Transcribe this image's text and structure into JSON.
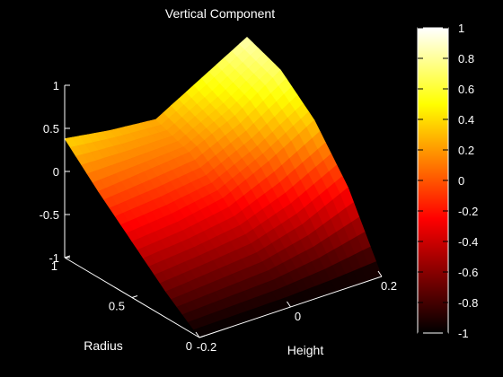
{
  "chart_data": {
    "type": "surface",
    "title": "Vertical Component",
    "xlabel": "Height",
    "ylabel": "Radius",
    "zlabel": "",
    "xlim": [
      -0.2,
      0.2
    ],
    "ylim": [
      0,
      1
    ],
    "zlim": [
      -1,
      1
    ],
    "x_ticks": [
      "-0.2",
      "0",
      "0.2"
    ],
    "y_ticks": [
      "0",
      "0.5",
      "1"
    ],
    "z_ticks": [
      "-1",
      "-0.5",
      "0",
      "0.5",
      "1"
    ],
    "colormap": "hot",
    "colorbar": {
      "range": [
        -1,
        1
      ],
      "ticks": [
        "-1",
        "-0.8",
        "-0.6",
        "-0.4",
        "-0.2",
        "0",
        "0.2",
        "0.4",
        "0.6",
        "0.8",
        "1"
      ]
    },
    "background": "#000000",
    "axis_color": "#ffffff",
    "grid": false,
    "surface": {
      "x": [
        -0.2,
        -0.1,
        0,
        0.1,
        0.2
      ],
      "y": [
        0,
        0.25,
        0.5,
        0.75,
        1
      ],
      "z": [
        [
          -1.0,
          -1.0,
          -1.0,
          -1.0,
          -1.0
        ],
        [
          -0.7,
          -0.65,
          -0.6,
          -0.45,
          -0.2
        ],
        [
          -0.35,
          -0.3,
          -0.2,
          0.05,
          0.35
        ],
        [
          0.0,
          0.05,
          0.1,
          0.35,
          0.7
        ],
        [
          0.38,
          0.3,
          0.25,
          0.55,
          0.85
        ]
      ]
    }
  }
}
